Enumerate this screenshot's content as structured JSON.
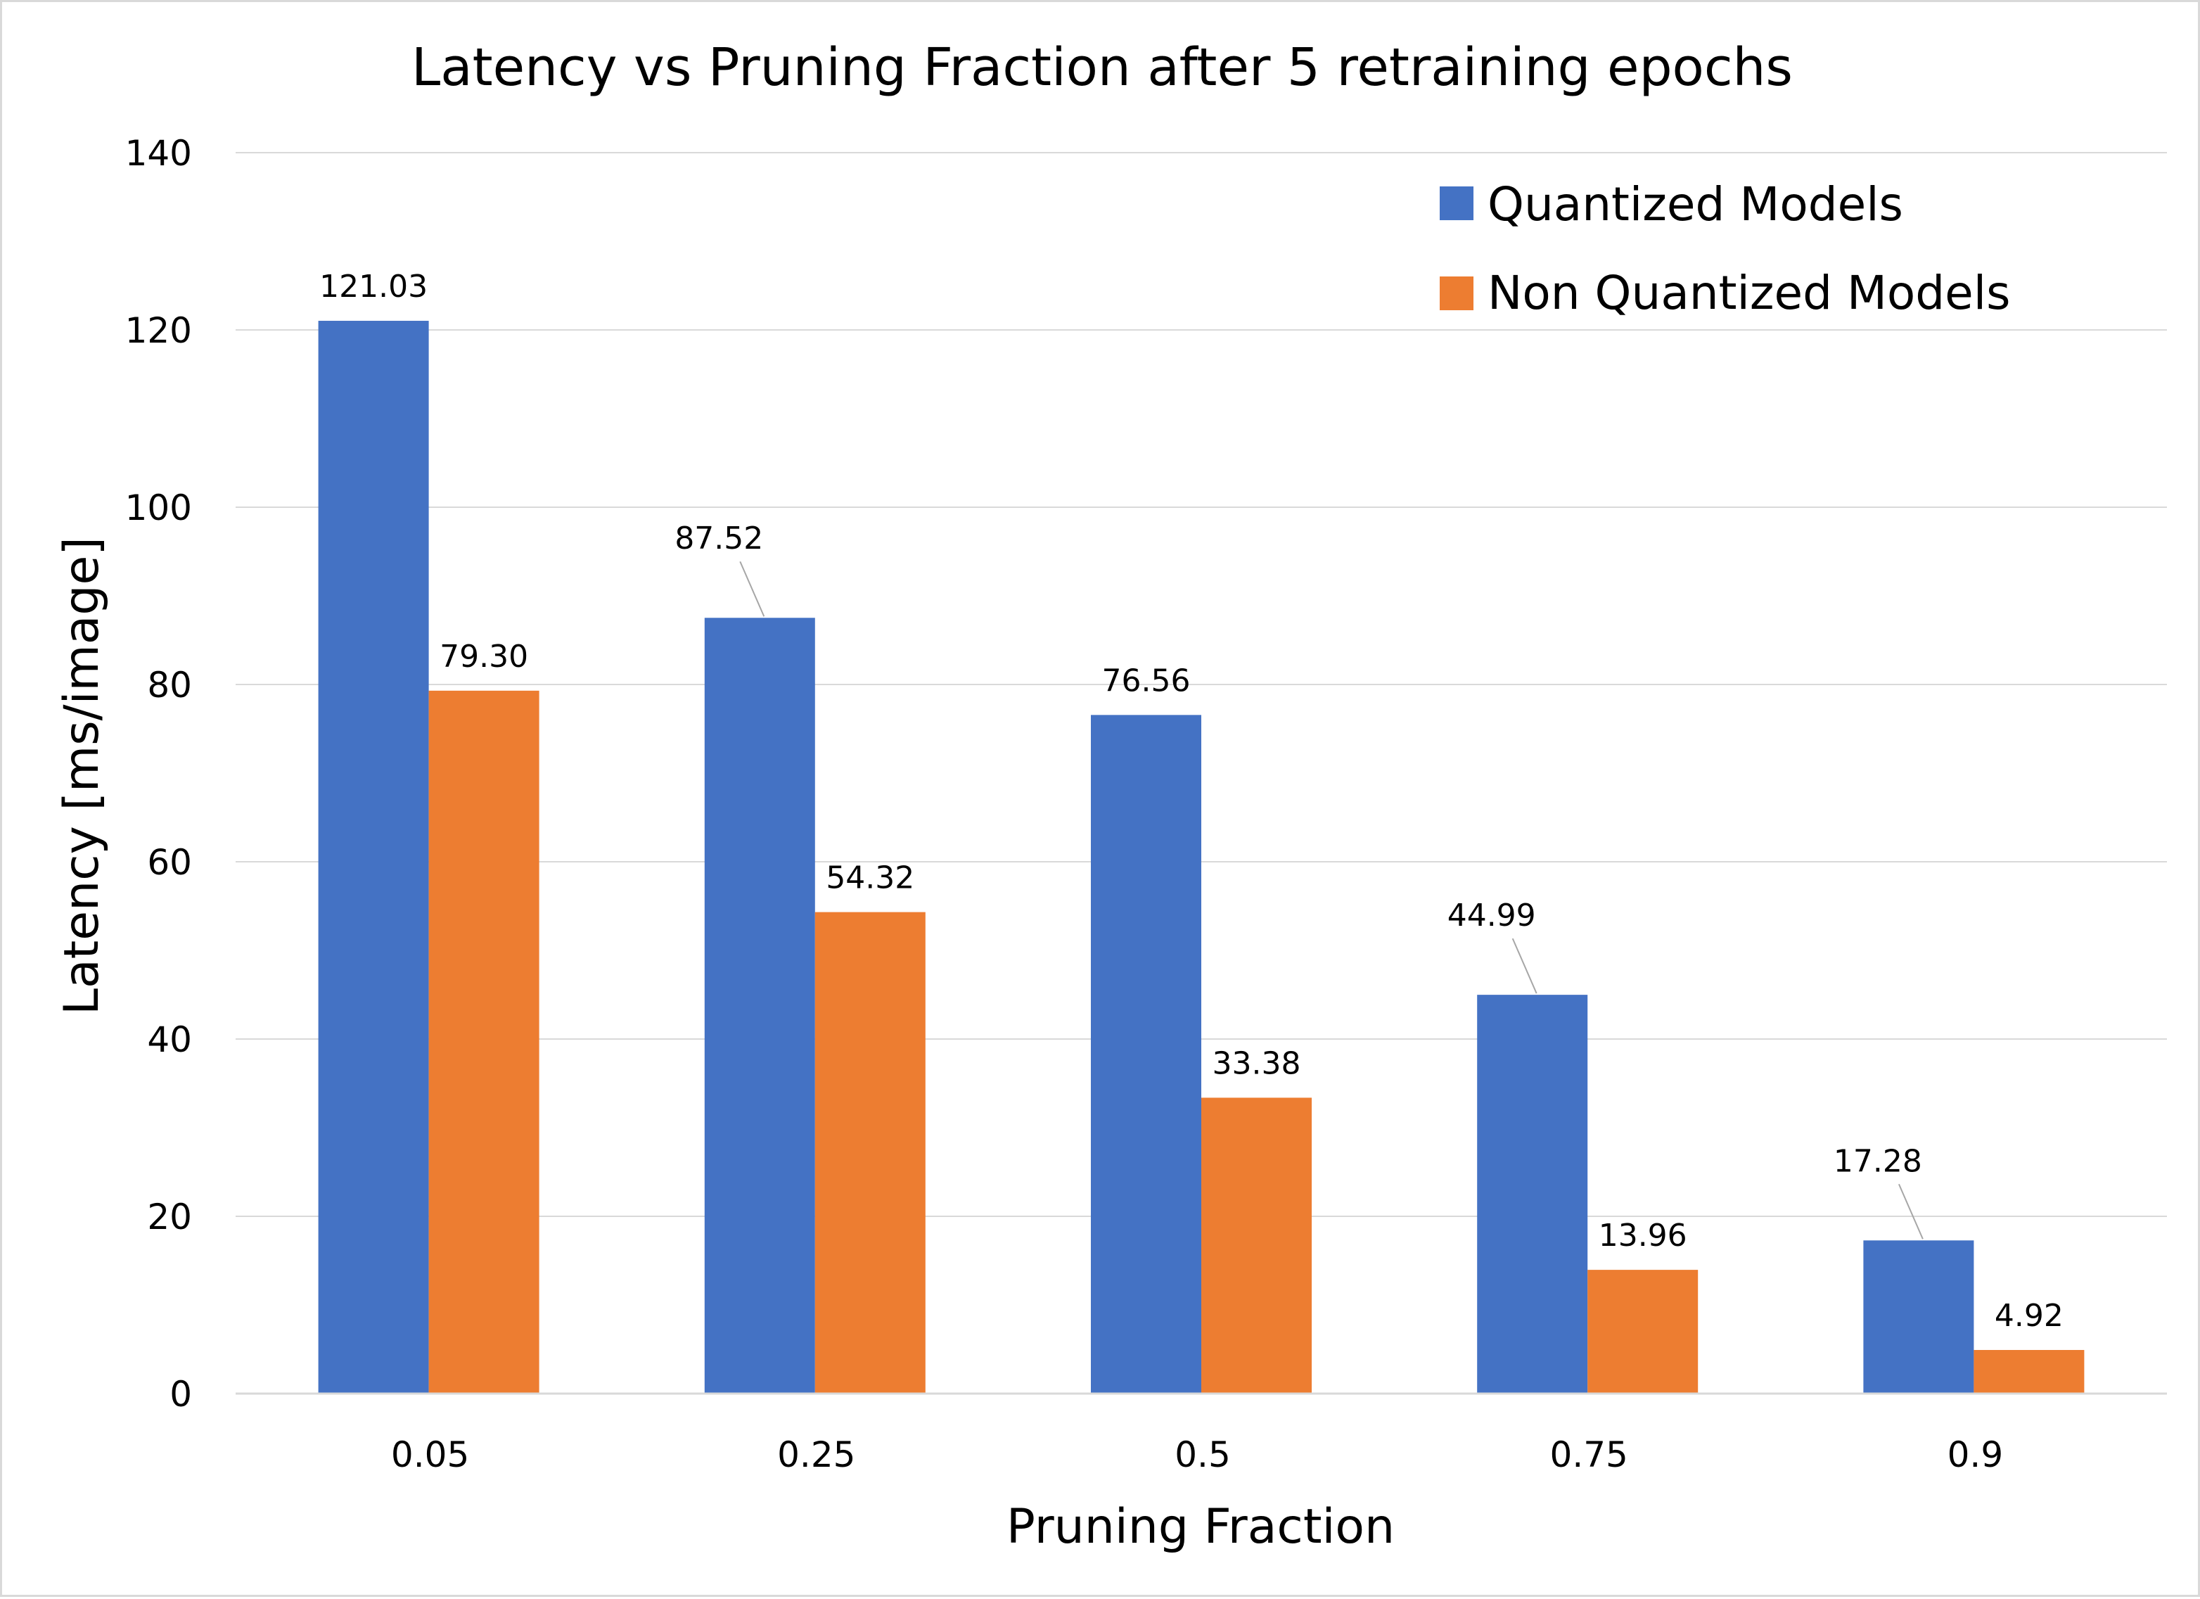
{
  "chart_data": {
    "type": "bar",
    "title": "Latency vs Pruning Fraction after 5 retraining epochs",
    "xlabel": "Pruning Fraction",
    "ylabel": "Latency [ms/image]",
    "categories": [
      "0.05",
      "0.25",
      "0.5",
      "0.75",
      "0.9"
    ],
    "series": [
      {
        "name": "Quantized Models",
        "color": "#4472C4",
        "values": [
          121.03,
          87.52,
          76.56,
          44.99,
          17.28
        ],
        "labels": [
          "121.03",
          "87.52",
          "76.56",
          "44.99",
          "17.28"
        ]
      },
      {
        "name": "Non Quantized Models",
        "color": "#ED7D31",
        "values": [
          79.3,
          54.32,
          33.38,
          13.96,
          4.92
        ],
        "labels": [
          "79.30",
          "54.32",
          "33.38",
          "13.96",
          "4.92"
        ]
      }
    ],
    "ylim": [
      0,
      140
    ],
    "yticks": [
      "0",
      "20",
      "40",
      "60",
      "80",
      "100",
      "120",
      "140"
    ],
    "grid": true,
    "legend_position": "top-right",
    "gridline_color": "#d9d9d9",
    "leader_line_color": "#a6a6a6"
  }
}
